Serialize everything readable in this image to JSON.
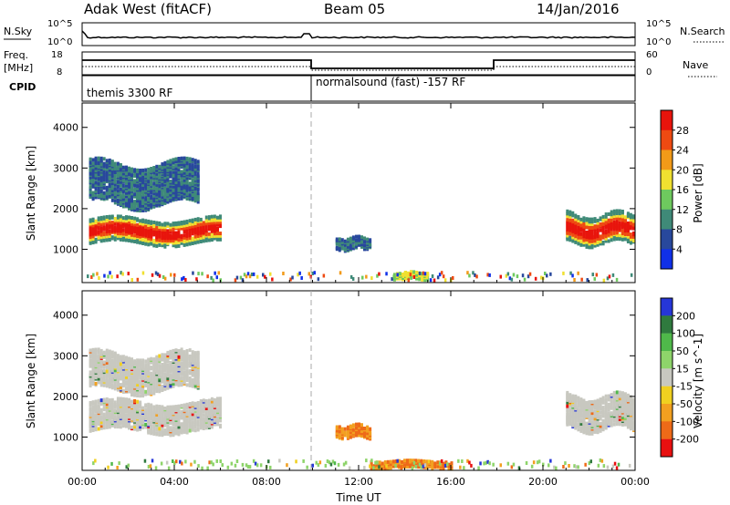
{
  "header": {
    "station": "Adak West (fitACF)",
    "beam": "Beam 05",
    "date": "14/Jan/2016"
  },
  "top_panel": {
    "left_label": "N.Sky",
    "right_label": "N.Search",
    "left_ticks": [
      "10^5",
      "10^0"
    ],
    "right_ticks": [
      "10^5",
      "10^0"
    ]
  },
  "freq_panel": {
    "left_label_1": "Freq.",
    "left_label_2": "[MHz]",
    "right_label": "Nave",
    "left_ticks": [
      "18",
      "8"
    ],
    "right_ticks": [
      "60",
      "0"
    ]
  },
  "cpid_panel": {
    "label": "CPID",
    "modes": [
      "themis 3300 RF",
      "normalsound (fast) -157 RF"
    ]
  },
  "chart_data": [
    {
      "type": "heatmap",
      "quantity": "Power",
      "ylabel": "Slant Range [km]",
      "yticks": [
        1000,
        2000,
        3000,
        4000
      ],
      "ylim": [
        180,
        4600
      ],
      "xlim": [
        0,
        24
      ],
      "colorbar_label": "Power [dB]",
      "colorbar_ticks": [
        "4",
        "8",
        "12",
        "16",
        "20",
        "24",
        "28"
      ],
      "colorbar_colors": [
        "#1030e8",
        "#28489c",
        "#3f8a78",
        "#6ec95e",
        "#f0e030",
        "#f29a18",
        "#ee4a12",
        "#e8140c"
      ],
      "echo_regions": [
        {
          "t_start": 0.3,
          "t_end": 6.0,
          "range_center_km": 1450,
          "range_halfwidth_km": 300,
          "dominant": "Power 20-28"
        },
        {
          "t_start": 0.3,
          "t_end": 5.0,
          "range_center_km": 2600,
          "range_halfwidth_km": 500,
          "dominant": "Power 4-12"
        },
        {
          "t_start": 21.0,
          "t_end": 24.0,
          "range_center_km": 1500,
          "range_halfwidth_km": 350,
          "dominant": "Power 20-28"
        },
        {
          "t_start": 11.0,
          "t_end": 12.5,
          "range_center_km": 1150,
          "range_halfwidth_km": 150,
          "dominant": "Power 4-8"
        },
        {
          "t_start": 13.5,
          "t_end": 15.0,
          "range_center_km": 350,
          "range_halfwidth_km": 80,
          "dominant": "Power 8-16"
        }
      ]
    },
    {
      "type": "heatmap",
      "quantity": "Velocity",
      "ylabel": "Slant Range [km]",
      "yticks": [
        1000,
        2000,
        3000,
        4000
      ],
      "ylim": [
        180,
        4600
      ],
      "xlim": [
        0,
        24
      ],
      "xticks": [
        "00:00",
        "04:00",
        "08:00",
        "12:00",
        "16:00",
        "20:00",
        "00:00"
      ],
      "xlabel": "Time UT",
      "colorbar_label": "Velocity [m s^-1]",
      "colorbar_ticks": [
        "200",
        "100",
        "50",
        "15",
        "-15",
        "-50",
        "-100",
        "-200"
      ],
      "colorbar_colors": [
        "#2636d8",
        "#2f7a3e",
        "#4fb84a",
        "#8ed46a",
        "#c8c8c0",
        "#f0d020",
        "#f2a020",
        "#ee6a18",
        "#e81010"
      ],
      "echo_regions": [
        {
          "t_start": 0.3,
          "t_end": 6.0,
          "range_center_km": 1500,
          "range_halfwidth_km": 350,
          "dominant": "Velocity -15 to 15 (ground scatter)"
        },
        {
          "t_start": 0.3,
          "t_end": 5.0,
          "range_center_km": 2600,
          "range_halfwidth_km": 450,
          "dominant": "Velocity -15 to 15"
        },
        {
          "t_start": 21.0,
          "t_end": 24.0,
          "range_center_km": 1600,
          "range_halfwidth_km": 400,
          "dominant": "Velocity -15 to 15"
        },
        {
          "t_start": 11.0,
          "t_end": 12.5,
          "range_center_km": 1150,
          "range_halfwidth_km": 150,
          "dominant": "Velocity -50 to -100"
        },
        {
          "t_start": 12.5,
          "t_end": 16.0,
          "range_center_km": 330,
          "range_halfwidth_km": 80,
          "dominant": "Velocity -50 to -100"
        }
      ]
    }
  ]
}
